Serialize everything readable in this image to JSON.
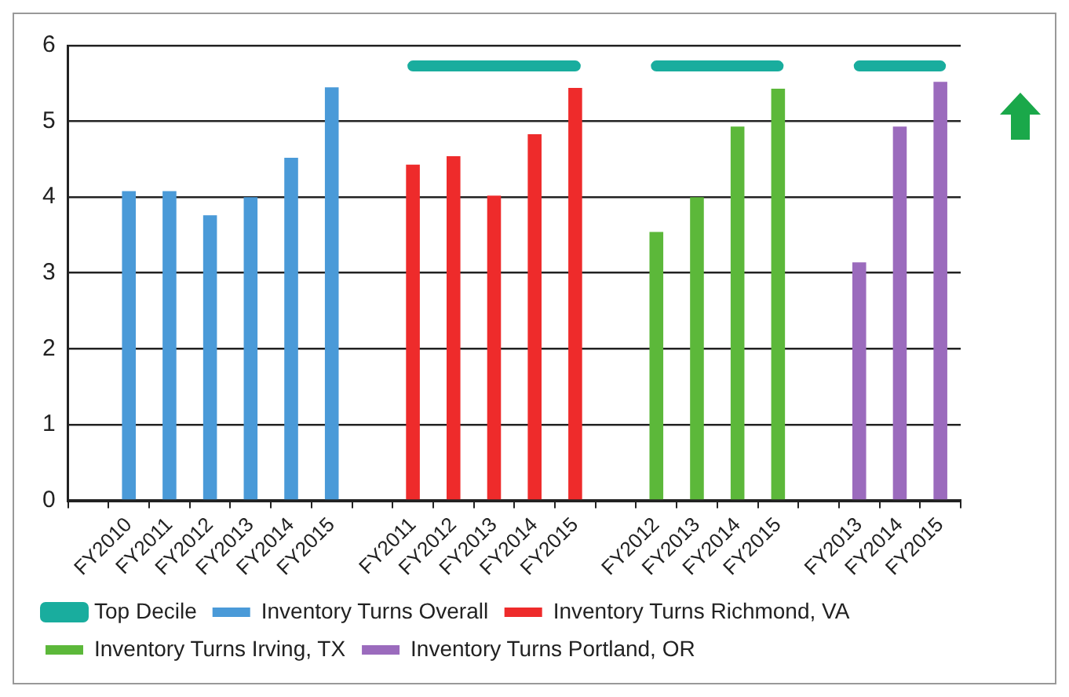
{
  "chart_data": {
    "type": "bar",
    "categories": [
      null,
      "FY2010",
      "FY2011",
      "FY2012",
      "FY2013",
      "FY2014",
      "FY2015",
      null,
      "FY2011",
      "FY2012",
      "FY2013",
      "FY2014",
      "FY2015",
      null,
      "FY2012",
      "FY2013",
      "FY2014",
      "FY2015",
      null,
      "FY2013",
      "FY2014",
      "FY2015"
    ],
    "series": [
      {
        "name": "Inventory Turns Overall",
        "color": "#4a9ad8",
        "values": [
          null,
          4.08,
          4.08,
          3.76,
          4.0,
          4.52,
          5.45,
          null,
          null,
          null,
          null,
          null,
          null,
          null,
          null,
          null,
          null,
          null,
          null,
          null,
          null,
          null
        ]
      },
      {
        "name": "Inventory Turns Richmond, VA",
        "color": "#ee2b2b",
        "values": [
          null,
          null,
          null,
          null,
          null,
          null,
          null,
          null,
          4.43,
          4.54,
          4.02,
          4.83,
          5.44,
          null,
          null,
          null,
          null,
          null,
          null,
          null,
          null,
          null
        ]
      },
      {
        "name": "Inventory Turns Irving, TX",
        "color": "#5cb83a",
        "values": [
          null,
          null,
          null,
          null,
          null,
          null,
          null,
          null,
          null,
          null,
          null,
          null,
          null,
          null,
          3.54,
          4.0,
          4.93,
          5.43,
          null,
          null,
          null,
          null
        ]
      },
      {
        "name": "Inventory Turns Portland, OR",
        "color": "#9b6bbd",
        "values": [
          null,
          null,
          null,
          null,
          null,
          null,
          null,
          null,
          null,
          null,
          null,
          null,
          null,
          null,
          null,
          null,
          null,
          null,
          null,
          3.14,
          4.93,
          5.52
        ]
      },
      {
        "name": "Top Decile",
        "type": "line",
        "color": "#19ad9e",
        "values": [
          null,
          null,
          null,
          null,
          null,
          null,
          null,
          null,
          5.73,
          5.73,
          5.73,
          5.73,
          5.73,
          null,
          5.73,
          5.73,
          5.73,
          5.73,
          null,
          5.73,
          5.73,
          5.73
        ]
      }
    ],
    "ylim": [
      0,
      6
    ],
    "yticks": [
      0,
      1,
      2,
      3,
      4,
      5,
      6
    ],
    "grid": "y",
    "legend": "bottom",
    "marker": "none"
  }
}
